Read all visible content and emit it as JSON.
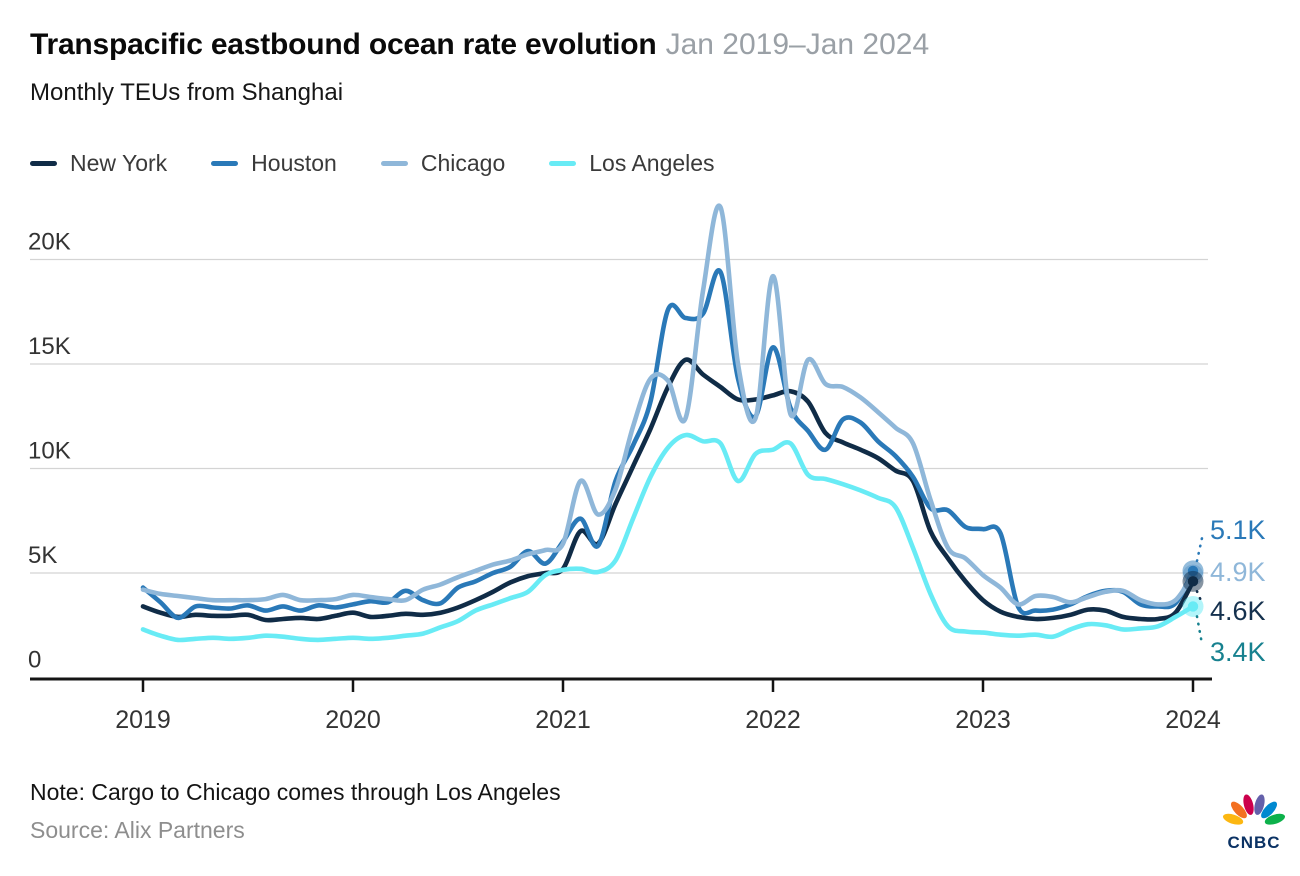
{
  "footer": {
    "note": "Note: Cargo to Chicago comes through Los Angeles",
    "source": "Source: Alix Partners",
    "logo_text": "CNBC"
  },
  "chart_data": {
    "type": "line",
    "title": "Transpacific eastbound ocean rate evolution",
    "title_period": "Jan 2019–Jan 2024",
    "subtitle": "Monthly TEUs from Shanghai",
    "x_start": "Jan 2019",
    "x_end": "Jan 2024",
    "x_interval": "monthly",
    "x_ticks": [
      "2019",
      "2020",
      "2021",
      "2022",
      "2023",
      "2024"
    ],
    "y_ticks": [
      {
        "label": "20K",
        "value": 20
      },
      {
        "label": "15K",
        "value": 15
      },
      {
        "label": "10K",
        "value": 10
      },
      {
        "label": "5K",
        "value": 5
      },
      {
        "label": "0",
        "value": 0
      }
    ],
    "values_unit": "K",
    "ylim_thousands": [
      0,
      22.5
    ],
    "grid": "horizontal",
    "legend_position": "top",
    "series": [
      {
        "name": "New York",
        "color": "#102c47",
        "label_color": "#15314e",
        "end_label": "4.6K",
        "values": [
          3.4,
          3.1,
          2.9,
          3.0,
          2.95,
          2.95,
          3.0,
          2.75,
          2.8,
          2.85,
          2.8,
          2.95,
          3.1,
          2.9,
          2.95,
          3.05,
          3.0,
          3.1,
          3.35,
          3.7,
          4.1,
          4.55,
          4.85,
          5.0,
          5.2,
          7.0,
          6.4,
          8.3,
          10.1,
          11.9,
          13.9,
          15.2,
          14.5,
          13.9,
          13.3,
          13.3,
          13.5,
          13.7,
          13.2,
          11.7,
          11.25,
          10.9,
          10.5,
          9.9,
          9.4,
          7.0,
          5.7,
          4.6,
          3.7,
          3.15,
          2.9,
          2.8,
          2.85,
          3.0,
          3.25,
          3.2,
          2.9,
          2.8,
          2.8,
          3.1,
          4.6
        ]
      },
      {
        "name": "Houston",
        "color": "#2a79b8",
        "label_color": "#2a79b8",
        "end_label": "5.1K",
        "values": [
          4.3,
          3.6,
          2.85,
          3.4,
          3.35,
          3.3,
          3.45,
          3.2,
          3.4,
          3.2,
          3.45,
          3.35,
          3.5,
          3.65,
          3.6,
          4.15,
          3.7,
          3.55,
          4.3,
          4.6,
          5.0,
          5.3,
          6.05,
          5.45,
          6.5,
          7.6,
          6.3,
          9.4,
          11.1,
          13.2,
          17.6,
          17.2,
          17.4,
          19.4,
          14.3,
          12.5,
          15.8,
          12.9,
          11.8,
          10.9,
          12.35,
          12.2,
          11.3,
          10.6,
          9.6,
          8.1,
          8.0,
          7.2,
          7.1,
          6.9,
          3.4,
          3.2,
          3.25,
          3.5,
          3.9,
          4.15,
          4.1,
          3.5,
          3.4,
          3.55,
          5.1
        ]
      },
      {
        "name": "Chicago",
        "color": "#8fb7d9",
        "label_color": "#8fb7d9",
        "end_label": "4.9K",
        "values": [
          4.2,
          4.0,
          3.9,
          3.8,
          3.7,
          3.7,
          3.7,
          3.75,
          3.95,
          3.7,
          3.7,
          3.75,
          3.95,
          3.85,
          3.75,
          3.7,
          4.2,
          4.45,
          4.8,
          5.1,
          5.4,
          5.6,
          5.9,
          6.1,
          6.4,
          9.4,
          7.8,
          9.0,
          12.0,
          14.3,
          14.2,
          12.4,
          18.5,
          22.5,
          15.0,
          12.4,
          19.2,
          12.6,
          15.2,
          14.05,
          13.9,
          13.4,
          12.7,
          11.95,
          11.2,
          8.5,
          6.2,
          5.7,
          4.9,
          4.3,
          3.5,
          3.9,
          3.85,
          3.6,
          3.85,
          4.1,
          4.15,
          3.7,
          3.5,
          3.7,
          4.9
        ]
      },
      {
        "name": "Los Angeles",
        "color": "#68ebf5",
        "label_color": "#17818f",
        "end_label": "3.4K",
        "values": [
          2.3,
          2.0,
          1.8,
          1.85,
          1.9,
          1.85,
          1.9,
          2.0,
          1.95,
          1.85,
          1.8,
          1.85,
          1.9,
          1.85,
          1.9,
          2.0,
          2.1,
          2.4,
          2.7,
          3.2,
          3.5,
          3.8,
          4.1,
          4.9,
          5.15,
          5.2,
          5.05,
          5.6,
          7.6,
          9.6,
          11.0,
          11.6,
          11.3,
          11.2,
          9.4,
          10.7,
          10.9,
          11.2,
          9.7,
          9.5,
          9.25,
          8.95,
          8.6,
          8.15,
          6.2,
          4.0,
          2.45,
          2.2,
          2.15,
          2.05,
          2.0,
          2.05,
          1.95,
          2.3,
          2.55,
          2.5,
          2.3,
          2.35,
          2.45,
          2.9,
          3.4
        ]
      }
    ]
  }
}
